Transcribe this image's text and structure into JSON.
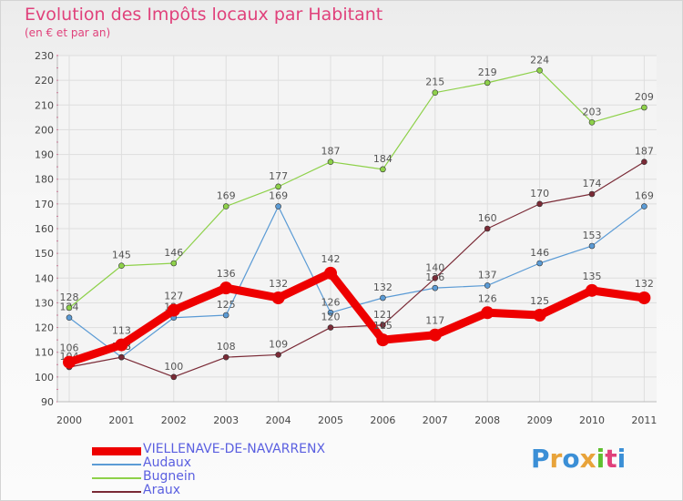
{
  "title": "Evolution des Impôts locaux par Habitant",
  "subtitle": "(en € et par an)",
  "brand": {
    "letters": [
      {
        "ch": "P",
        "color": "#3b8fd6"
      },
      {
        "ch": "r",
        "color": "#e8a33a"
      },
      {
        "ch": "o",
        "color": "#3b8fd6"
      },
      {
        "ch": "x",
        "color": "#e8a33a"
      },
      {
        "ch": "i",
        "color": "#5fbf2f"
      },
      {
        "ch": "t",
        "color": "#e0417b"
      },
      {
        "ch": "i",
        "color": "#3b8fd6"
      }
    ]
  },
  "chart_data": {
    "type": "line",
    "x": [
      "2000",
      "2001",
      "2002",
      "2003",
      "2004",
      "2005",
      "2006",
      "2007",
      "2008",
      "2009",
      "2010",
      "2011"
    ],
    "y_ticks": [
      "90",
      "100",
      "110",
      "120",
      "130",
      "140",
      "150",
      "160",
      "170",
      "180",
      "190",
      "200",
      "210",
      "220",
      "230"
    ],
    "ylim": [
      90,
      230
    ],
    "grid": true,
    "legend_position": "bottom-left",
    "series": [
      {
        "name": "VIELLENAVE-DE-NAVARRENX",
        "color": "#ee0000",
        "width": 9,
        "marker": 7,
        "values": [
          106,
          113,
          127,
          136,
          132,
          142,
          115,
          117,
          126,
          125,
          135,
          132
        ]
      },
      {
        "name": "Audaux",
        "color": "#5b9bd5",
        "width": 1.2,
        "marker": 3,
        "values": [
          124,
          108,
          124,
          125,
          169,
          126,
          132,
          136,
          137,
          146,
          153,
          169
        ]
      },
      {
        "name": "Bugnein",
        "color": "#8ed14a",
        "width": 1.2,
        "marker": 3,
        "values": [
          128,
          145,
          146,
          169,
          177,
          187,
          184,
          215,
          219,
          224,
          203,
          209
        ]
      },
      {
        "name": "Araux",
        "color": "#7a2a36",
        "width": 1.2,
        "marker": 3,
        "values": [
          104,
          108,
          100,
          108,
          109,
          120,
          121,
          140,
          160,
          170,
          174,
          187
        ]
      }
    ]
  }
}
